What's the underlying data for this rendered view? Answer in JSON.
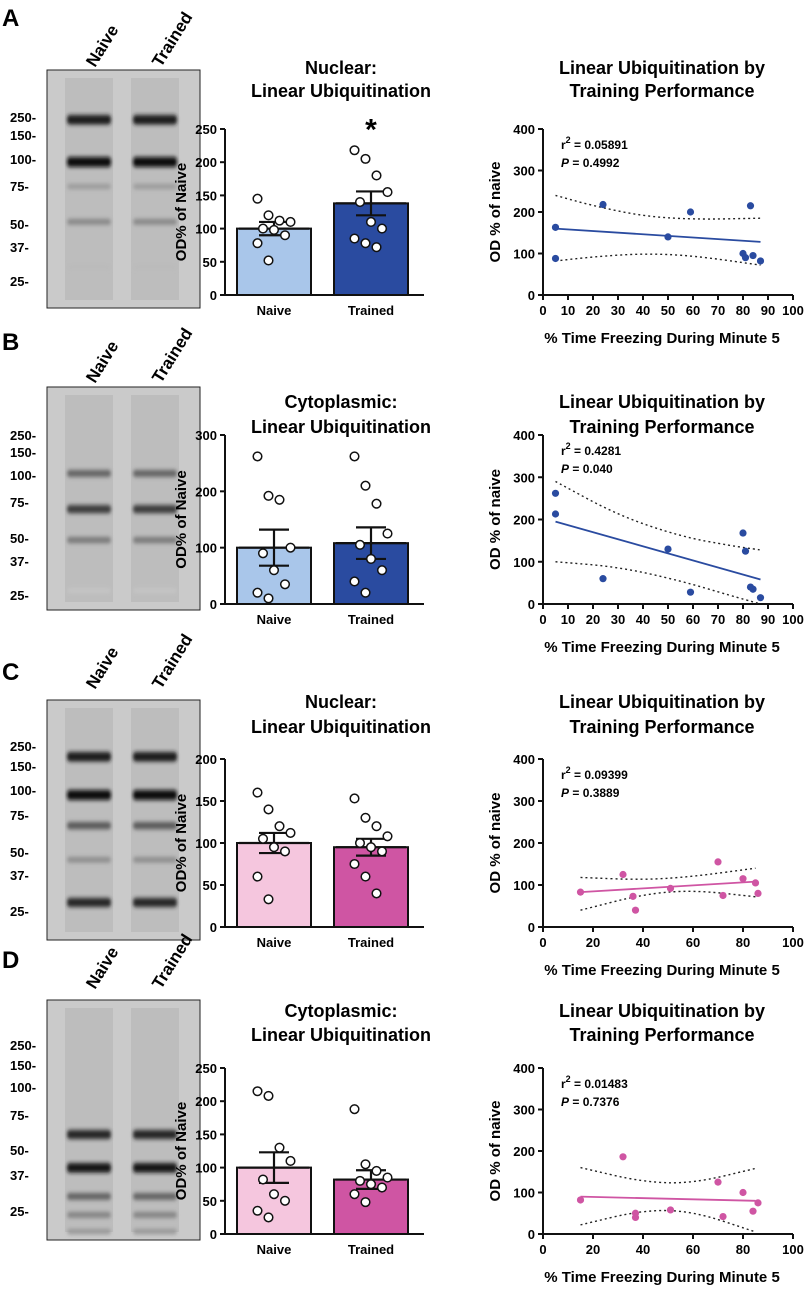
{
  "chart_data": [
    {
      "panel": "A",
      "type": "bar",
      "title": [
        "Nuclear:",
        "Linear Ubiquitination"
      ],
      "ylabel": "OD% of Naive",
      "ylim": [
        0,
        250
      ],
      "yticks": [
        0,
        50,
        100,
        150,
        200,
        250
      ],
      "categories": [
        "Naive",
        "Trained"
      ],
      "values": [
        100,
        138
      ],
      "sem": [
        10,
        18
      ],
      "colors": [
        "#a9c6ea",
        "#2a4ba0"
      ],
      "points": [
        [
          145,
          120,
          112,
          110,
          100,
          98,
          90,
          78,
          52
        ],
        [
          218,
          205,
          180,
          155,
          140,
          110,
          100,
          85,
          78,
          72
        ]
      ],
      "annotation": "*",
      "western_blot": {
        "lanes": [
          "Naive",
          "Trained"
        ],
        "markers": [
          "250-",
          "150-",
          "100-",
          "75-",
          "50-",
          "37-",
          "25-"
        ],
        "band_intensity": [
          0.92,
          0.0,
          1.0,
          0.28,
          0.38,
          0.0,
          0.12
        ]
      },
      "regression": {
        "title": [
          "Linear Ubiquitination by",
          "Training Performance"
        ],
        "xlabel": "% Time Freezing During Minute 5",
        "ylabel": "OD % of naive",
        "xlim": [
          0,
          100
        ],
        "ylim": [
          0,
          400
        ],
        "xticks": [
          0,
          10,
          20,
          30,
          40,
          50,
          60,
          70,
          80,
          90,
          100
        ],
        "yticks": [
          0,
          100,
          200,
          300,
          400
        ],
        "r2_text": "r",
        "r2_value": " = 0.05891",
        "p_label": "P",
        "p_value": " = 0.4992",
        "color": "#2a4ba0",
        "line": [
          [
            5,
            160
          ],
          [
            87,
            128
          ]
        ],
        "band_upper": [
          [
            5,
            240
          ],
          [
            20,
            215
          ],
          [
            40,
            190
          ],
          [
            60,
            182
          ],
          [
            87,
            185
          ]
        ],
        "band_lower": [
          [
            5,
            82
          ],
          [
            20,
            92
          ],
          [
            40,
            100
          ],
          [
            60,
            95
          ],
          [
            87,
            72
          ]
        ],
        "points": [
          [
            5,
            163
          ],
          [
            5,
            88
          ],
          [
            24,
            218
          ],
          [
            50,
            140
          ],
          [
            59,
            200
          ],
          [
            80,
            100
          ],
          [
            81,
            90
          ],
          [
            83,
            215
          ],
          [
            84,
            95
          ],
          [
            87,
            82
          ]
        ]
      }
    },
    {
      "panel": "B",
      "type": "bar",
      "title": [
        "Cytoplasmic:",
        "Linear Ubiquitination"
      ],
      "ylabel": "OD% of Naive",
      "ylim": [
        0,
        300
      ],
      "yticks": [
        0,
        100,
        200,
        300
      ],
      "categories": [
        "Naive",
        "Trained"
      ],
      "values": [
        100,
        108
      ],
      "sem": [
        32,
        28
      ],
      "colors": [
        "#a9c6ea",
        "#2a4ba0"
      ],
      "points": [
        [
          262,
          192,
          185,
          100,
          90,
          60,
          35,
          20,
          10
        ],
        [
          262,
          210,
          178,
          125,
          105,
          80,
          60,
          40,
          20
        ]
      ],
      "annotation": "",
      "western_blot": {
        "lanes": [
          "Naive",
          "Trained"
        ],
        "markers": [
          "250-",
          "150-",
          "100-",
          "75-",
          "50-",
          "37-",
          "25-"
        ],
        "band_intensity": [
          0.0,
          0.0,
          0.55,
          0.75,
          0.45,
          0.0,
          0.05
        ]
      },
      "regression": {
        "title": [
          "Linear Ubiquitination by",
          "Training Performance"
        ],
        "xlabel": "% Time Freezing During Minute 5",
        "ylabel": "OD % of naive",
        "xlim": [
          0,
          100
        ],
        "ylim": [
          0,
          400
        ],
        "xticks": [
          0,
          10,
          20,
          30,
          40,
          50,
          60,
          70,
          80,
          90,
          100
        ],
        "yticks": [
          0,
          100,
          200,
          300,
          400
        ],
        "r2_text": "r",
        "r2_value": " = 0.4281",
        "p_label": "P",
        "p_value": " = 0.040",
        "color": "#2a4ba0",
        "line": [
          [
            5,
            195
          ],
          [
            87,
            58
          ]
        ],
        "band_upper": [
          [
            5,
            290
          ],
          [
            30,
            210
          ],
          [
            55,
            160
          ],
          [
            75,
            138
          ],
          [
            87,
            128
          ]
        ],
        "band_lower": [
          [
            5,
            100
          ],
          [
            30,
            88
          ],
          [
            55,
            55
          ],
          [
            75,
            20
          ],
          [
            87,
            -10
          ]
        ],
        "points": [
          [
            5,
            262
          ],
          [
            5,
            213
          ],
          [
            24,
            60
          ],
          [
            50,
            130
          ],
          [
            59,
            28
          ],
          [
            80,
            168
          ],
          [
            81,
            125
          ],
          [
            83,
            40
          ],
          [
            84,
            35
          ],
          [
            87,
            15
          ]
        ]
      }
    },
    {
      "panel": "C",
      "type": "bar",
      "title": [
        "Nuclear:",
        "Linear Ubiquitination"
      ],
      "ylabel": "OD% of Naive",
      "ylim": [
        0,
        200
      ],
      "yticks": [
        0,
        50,
        100,
        150,
        200
      ],
      "categories": [
        "Naive",
        "Trained"
      ],
      "values": [
        100,
        95
      ],
      "sem": [
        12,
        10
      ],
      "colors": [
        "#f5c6de",
        "#cf55a3"
      ],
      "points": [
        [
          160,
          140,
          120,
          112,
          105,
          95,
          90,
          60,
          33
        ],
        [
          153,
          130,
          120,
          108,
          100,
          95,
          90,
          75,
          60,
          40
        ]
      ],
      "annotation": "",
      "western_blot": {
        "lanes": [
          "Naive",
          "Trained"
        ],
        "markers": [
          "250-",
          "150-",
          "100-",
          "75-",
          "50-",
          "37-",
          "25-"
        ],
        "band_intensity": [
          0.92,
          0.0,
          1.0,
          0.6,
          0.35,
          0.0,
          0.85
        ]
      },
      "regression": {
        "title": [
          "Linear Ubiquitination by",
          "Training Performance"
        ],
        "xlabel": "% Time Freezing During Minute 5",
        "ylabel": "OD % of naive",
        "xlim": [
          0,
          100
        ],
        "ylim": [
          0,
          400
        ],
        "xticks": [
          0,
          20,
          40,
          60,
          80,
          100
        ],
        "yticks": [
          0,
          100,
          200,
          300,
          400
        ],
        "r2_text": "r",
        "r2_value": " = 0.09399",
        "p_label": "P",
        "p_value": " = 0.3889",
        "color": "#cf55a3",
        "line": [
          [
            15,
            83
          ],
          [
            85,
            108
          ]
        ],
        "band_upper": [
          [
            15,
            118
          ],
          [
            40,
            112
          ],
          [
            60,
            120
          ],
          [
            85,
            140
          ]
        ],
        "band_lower": [
          [
            15,
            40
          ],
          [
            40,
            78
          ],
          [
            60,
            88
          ],
          [
            85,
            72
          ]
        ],
        "points": [
          [
            15,
            83
          ],
          [
            32,
            125
          ],
          [
            36,
            73
          ],
          [
            37,
            40
          ],
          [
            51,
            92
          ],
          [
            70,
            155
          ],
          [
            72,
            75
          ],
          [
            80,
            115
          ],
          [
            85,
            105
          ],
          [
            86,
            80
          ]
        ]
      }
    },
    {
      "panel": "D",
      "type": "bar",
      "title": [
        "Cytoplasmic:",
        "Linear Ubiquitination"
      ],
      "ylabel": "OD% of Naive",
      "ylim": [
        0,
        250
      ],
      "yticks": [
        0,
        50,
        100,
        150,
        200,
        250
      ],
      "categories": [
        "Naive",
        "Trained"
      ],
      "values": [
        100,
        82
      ],
      "sem": [
        23,
        14
      ],
      "colors": [
        "#f5c6de",
        "#cf55a3"
      ],
      "points": [
        [
          215,
          208,
          130,
          110,
          82,
          60,
          50,
          35,
          25
        ],
        [
          188,
          105,
          95,
          85,
          80,
          75,
          70,
          60,
          48
        ]
      ],
      "annotation": "",
      "western_blot": {
        "lanes": [
          "Naive",
          "Trained"
        ],
        "markers": [
          "250-",
          "150-",
          "100-",
          "75-",
          "50-",
          "37-",
          "25-"
        ],
        "band_intensity": [
          0.0,
          0.0,
          0.85,
          0.95,
          0.55,
          0.4,
          0.3
        ]
      },
      "regression": {
        "title": [
          "Linear Ubiquitination by",
          "Training Performance"
        ],
        "xlabel": "% Time Freezing During Minute 5",
        "ylabel": "OD % of naive",
        "xlim": [
          0,
          100
        ],
        "ylim": [
          0,
          400
        ],
        "xticks": [
          0,
          20,
          40,
          60,
          80,
          100
        ],
        "yticks": [
          0,
          100,
          200,
          300,
          400
        ],
        "r2_text": "r",
        "r2_value": " = 0.01483",
        "p_label": "P",
        "p_value": " = 0.7376",
        "color": "#cf55a3",
        "line": [
          [
            15,
            90
          ],
          [
            85,
            80
          ]
        ],
        "band_upper": [
          [
            15,
            160
          ],
          [
            40,
            125
          ],
          [
            60,
            122
          ],
          [
            85,
            158
          ]
        ],
        "band_lower": [
          [
            15,
            22
          ],
          [
            40,
            58
          ],
          [
            60,
            55
          ],
          [
            85,
            5
          ]
        ],
        "points": [
          [
            15,
            82
          ],
          [
            32,
            186
          ],
          [
            37,
            40
          ],
          [
            37,
            50
          ],
          [
            51,
            58
          ],
          [
            70,
            125
          ],
          [
            72,
            42
          ],
          [
            80,
            100
          ],
          [
            84,
            55
          ],
          [
            86,
            75
          ]
        ]
      }
    }
  ],
  "panel_labels": [
    "A",
    "B",
    "C",
    "D"
  ]
}
